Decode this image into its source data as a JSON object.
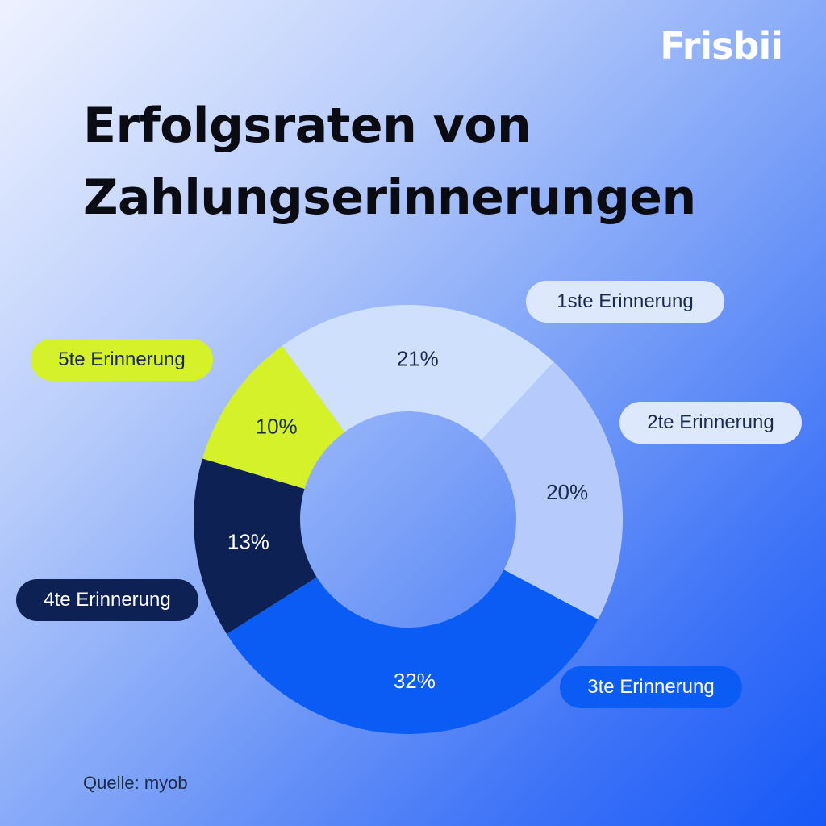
{
  "brand": {
    "logo_text": "Frisbii"
  },
  "title_lines": [
    "Erfolgsraten von",
    "Zahlungserinnerungen"
  ],
  "source": "Quelle: myob",
  "chart_data": {
    "type": "pie",
    "variant": "donut",
    "categories": [
      "1ste Erinnerung",
      "2te Erinnerung",
      "3te Erinnerung",
      "4te Erinnerung",
      "5te Erinnerung"
    ],
    "values": [
      21,
      20,
      32,
      13,
      10
    ],
    "value_labels": [
      "21%",
      "20%",
      "32%",
      "13%",
      "10%"
    ],
    "unit": "%",
    "colors": [
      "#cfe0fd",
      "#b6cbfb",
      "#0b5cf5",
      "#0d2154",
      "#d4f12a"
    ],
    "label_colors": [
      "#1b2a4a",
      "#1b2a4a",
      "#ffffff",
      "#ffffff",
      "#1b2a4a"
    ],
    "pill_colors": [
      "#dde8fd",
      "#dde8fd",
      "#0b5cf5",
      "#0d2154",
      "#d4f12a"
    ],
    "pill_text_colors": [
      "#1b2a4a",
      "#1b2a4a",
      "#ffffff",
      "#ffffff",
      "#1b2a4a"
    ]
  }
}
